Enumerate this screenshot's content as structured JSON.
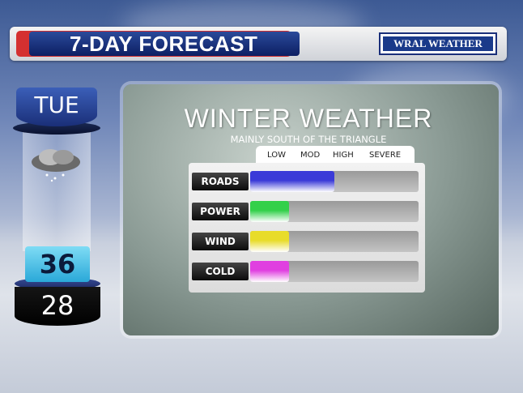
{
  "header": {
    "title": "7-DAY FORECAST",
    "logo": "WRAL WEATHER"
  },
  "day": {
    "name": "TUE",
    "high": "36",
    "low": "28",
    "icon": "cloud-snow-icon"
  },
  "panel": {
    "title": "WINTER WEATHER",
    "subtitle": "MAINLY SOUTH OF THE TRIANGLE",
    "scale": [
      "LOW",
      "MOD",
      "HIGH",
      "SEVERE"
    ],
    "rows": [
      {
        "label": "ROADS",
        "level_fraction": 0.5,
        "color": "#3a3ad8"
      },
      {
        "label": "POWER",
        "level_fraction": 0.23,
        "color": "#33d04a"
      },
      {
        "label": "WIND",
        "level_fraction": 0.23,
        "color": "#e8dc2a"
      },
      {
        "label": "COLD",
        "level_fraction": 0.23,
        "color": "#e040e0"
      }
    ]
  }
}
